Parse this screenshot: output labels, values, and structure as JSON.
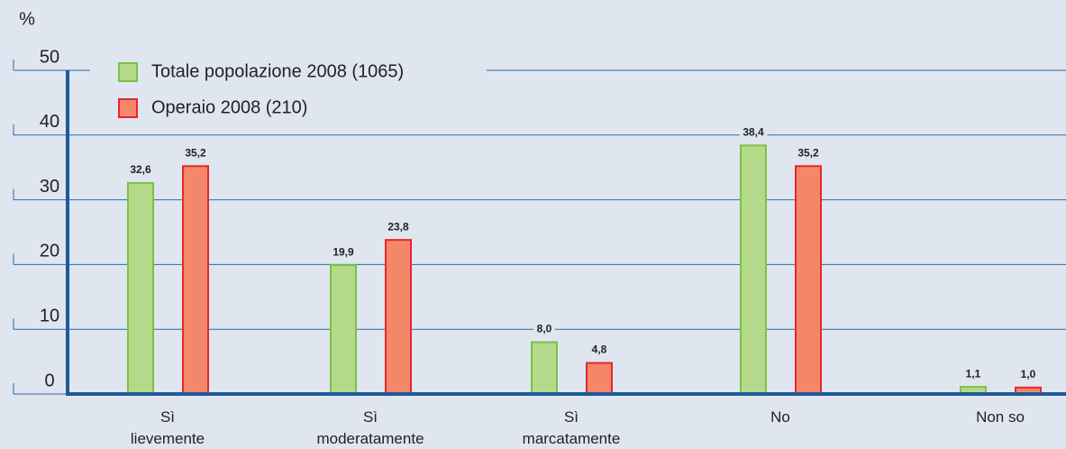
{
  "chart_data": {
    "type": "bar",
    "y_label": "%",
    "categories": [
      [
        "Sì",
        "lievemente"
      ],
      [
        "Sì",
        "moderatamente"
      ],
      [
        "Sì",
        "marcatamente"
      ],
      [
        "No"
      ],
      [
        "Non so"
      ]
    ],
    "series": [
      {
        "name": "Totale popolazione 2008 (1065)",
        "color": "#b5d98a",
        "stroke": "#7cc242",
        "values": [
          32.6,
          19.9,
          8.0,
          38.4,
          1.1
        ],
        "value_labels": [
          "32,6",
          "19,9",
          "8,0",
          "38,4",
          "1,1"
        ]
      },
      {
        "name": "Operaio 2008 (210)",
        "color": "#f4876a",
        "stroke": "#e8262c",
        "values": [
          35.2,
          23.8,
          4.8,
          35.2,
          1.0
        ],
        "value_labels": [
          "35,2",
          "23,8",
          "4,8",
          "35,2",
          "1,0"
        ]
      }
    ],
    "ylim": [
      0,
      50
    ],
    "yticks": [
      0,
      10,
      20,
      30,
      40,
      50
    ],
    "grid": true,
    "legend": "top-left"
  }
}
